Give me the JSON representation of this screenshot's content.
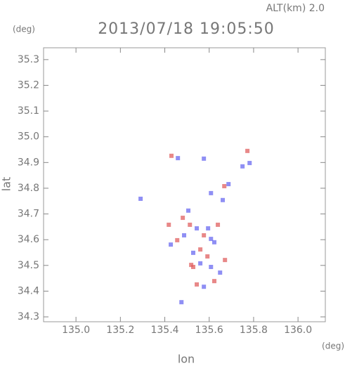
{
  "chart_data": {
    "type": "scatter",
    "title": "2013/07/18 19:05:50",
    "subtitle": "ALT(km) 2.0",
    "x_label": "lon",
    "y_label": "lat",
    "x_unit": "(deg)",
    "y_unit": "(deg)",
    "xlim": [
      134.854,
      136.123
    ],
    "ylim": [
      34.281,
      35.346
    ],
    "xticks": [
      {
        "value": 135,
        "label": "135.0"
      },
      135.2,
      135.4,
      135.6,
      135.8,
      {
        "value": 136,
        "label": "136.0"
      }
    ],
    "yticks": [
      34.3,
      34.4,
      34.5,
      34.6,
      34.7,
      34.8,
      34.9,
      {
        "value": 35,
        "label": "35.0"
      },
      35.1,
      35.2,
      35.3
    ],
    "series": [
      {
        "color": "#e06060",
        "x": [
          135.43,
          135.772,
          135.668,
          135.513,
          135.576,
          135.418,
          135.639,
          135.56,
          135.592,
          135.528,
          135.544,
          135.623,
          135.519,
          135.456,
          135.481,
          135.671
        ],
        "values": [
          34.926,
          34.945,
          34.808,
          34.658,
          34.617,
          34.658,
          34.658,
          34.562,
          34.535,
          34.494,
          34.426,
          34.439,
          34.502,
          34.598,
          34.685,
          34.521
        ]
      },
      {
        "color": "#6a6af0",
        "x": [
          135.459,
          135.576,
          135.782,
          135.75,
          135.687,
          135.608,
          135.661,
          135.291,
          135.595,
          135.544,
          135.608,
          135.427,
          135.623,
          135.528,
          135.56,
          135.608,
          135.576,
          135.649,
          135.475,
          135.487,
          135.506
        ],
        "values": [
          34.917,
          34.915,
          34.898,
          34.885,
          34.816,
          34.781,
          34.754,
          34.759,
          34.644,
          34.644,
          34.603,
          34.581,
          34.59,
          34.549,
          34.508,
          34.494,
          34.417,
          34.472,
          34.357,
          34.617,
          34.713
        ]
      }
    ]
  }
}
